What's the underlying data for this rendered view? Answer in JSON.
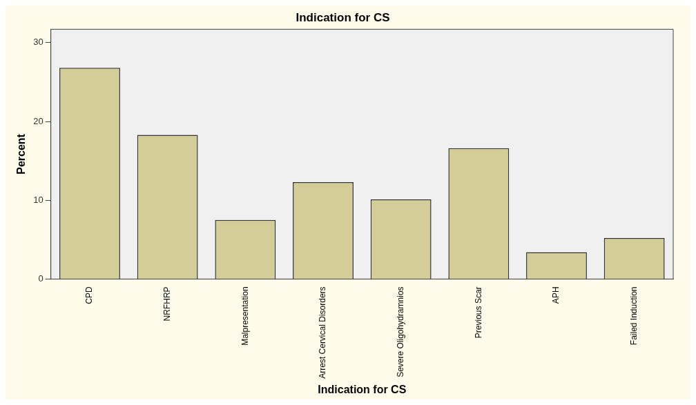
{
  "chart_data": {
    "type": "bar",
    "title": "Indication for CS",
    "xlabel": "Indication for CS",
    "ylabel": "Percent",
    "categories": [
      "CPD",
      "NRFHRP",
      "Malpresentation",
      "Arrest Cervical Disorders",
      "Severe Oligohydramnios",
      "Previous Scar",
      "APH",
      "Failed Induction"
    ],
    "values": [
      26.8,
      18.3,
      7.5,
      12.3,
      10.1,
      16.6,
      3.4,
      5.2
    ],
    "color": "#d3cd97",
    "ylim": [
      0,
      31.7
    ],
    "yticks": [
      0,
      10,
      20,
      30
    ],
    "grid": false,
    "legend": false
  }
}
